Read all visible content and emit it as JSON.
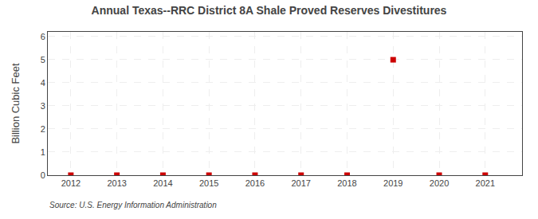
{
  "chart_data": {
    "type": "scatter",
    "title": "Annual Texas--RRC District 8A Shale Proved Reserves Divestitures",
    "y_label": "Billion Cubic Feet",
    "annotations": [
      "Source: U.S. Energy Information Administration"
    ],
    "x": [
      2012,
      2013,
      2014,
      2015,
      2016,
      2017,
      2018,
      2019,
      2020,
      2021
    ],
    "values": [
      0.0,
      0.0,
      0.0,
      0.0,
      0.0,
      0.0,
      0.0,
      4.993,
      0.0,
      0.0
    ],
    "color": "#cc0000",
    "marker": "square",
    "xlim": [
      2011.5,
      2021.8
    ],
    "xticks": [
      2012,
      2013,
      2014,
      2015,
      2016,
      2017,
      2018,
      2019,
      2020,
      2021
    ],
    "ylim": [
      0,
      6.2
    ],
    "yticks": [
      0,
      1,
      2,
      3,
      4,
      5,
      6
    ],
    "grid": true
  }
}
